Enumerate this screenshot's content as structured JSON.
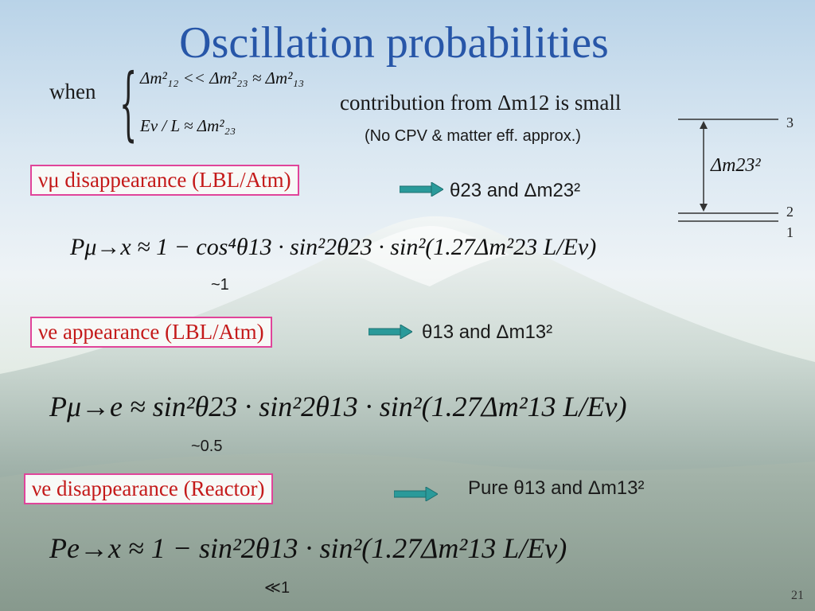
{
  "title": "Oscillation probabilities",
  "condition": {
    "when_label": "when",
    "line1": "Δm²₁₂ << Δm²₂₃ ≈ Δm²₁₃",
    "line2": "Eν / L ≈ Δm²₂₃"
  },
  "contribution_text": "contribution from Δm12 is small",
  "approx_note": "(No CPV & matter eff. approx.)",
  "level_diagram": {
    "delta_label": "Δm23²",
    "levels": [
      "3",
      "2",
      "1"
    ]
  },
  "sections": [
    {
      "box_label": "νμ disappearance (LBL/Atm)",
      "result": "θ23 and Δm23²",
      "formula": "Pμ→x ≈ 1 − cos⁴θ13 · sin²2θ23 · sin²(1.27Δm²23 L/Eν)",
      "note": "~1"
    },
    {
      "box_label": "νe appearance (LBL/Atm)",
      "result": "θ13 and Δm13²",
      "formula": "Pμ→e ≈ sin²θ23 · sin²2θ13 · sin²(1.27Δm²13 L/Eν)",
      "note": "~0.5"
    },
    {
      "box_label": "νe disappearance (Reactor)",
      "result": "Pure θ13 and Δm13²",
      "formula": "Pe→x ≈ 1 − sin²2θ13 · sin²(1.27Δm²13 L/Eν)",
      "note": "≪1"
    }
  ],
  "page_number": "21",
  "colors": {
    "title": "#2756a8",
    "box_border": "#e0449a",
    "box_text": "#c41a1a",
    "arrow": "#2a9a9a",
    "highlight": "#d11a1a"
  }
}
